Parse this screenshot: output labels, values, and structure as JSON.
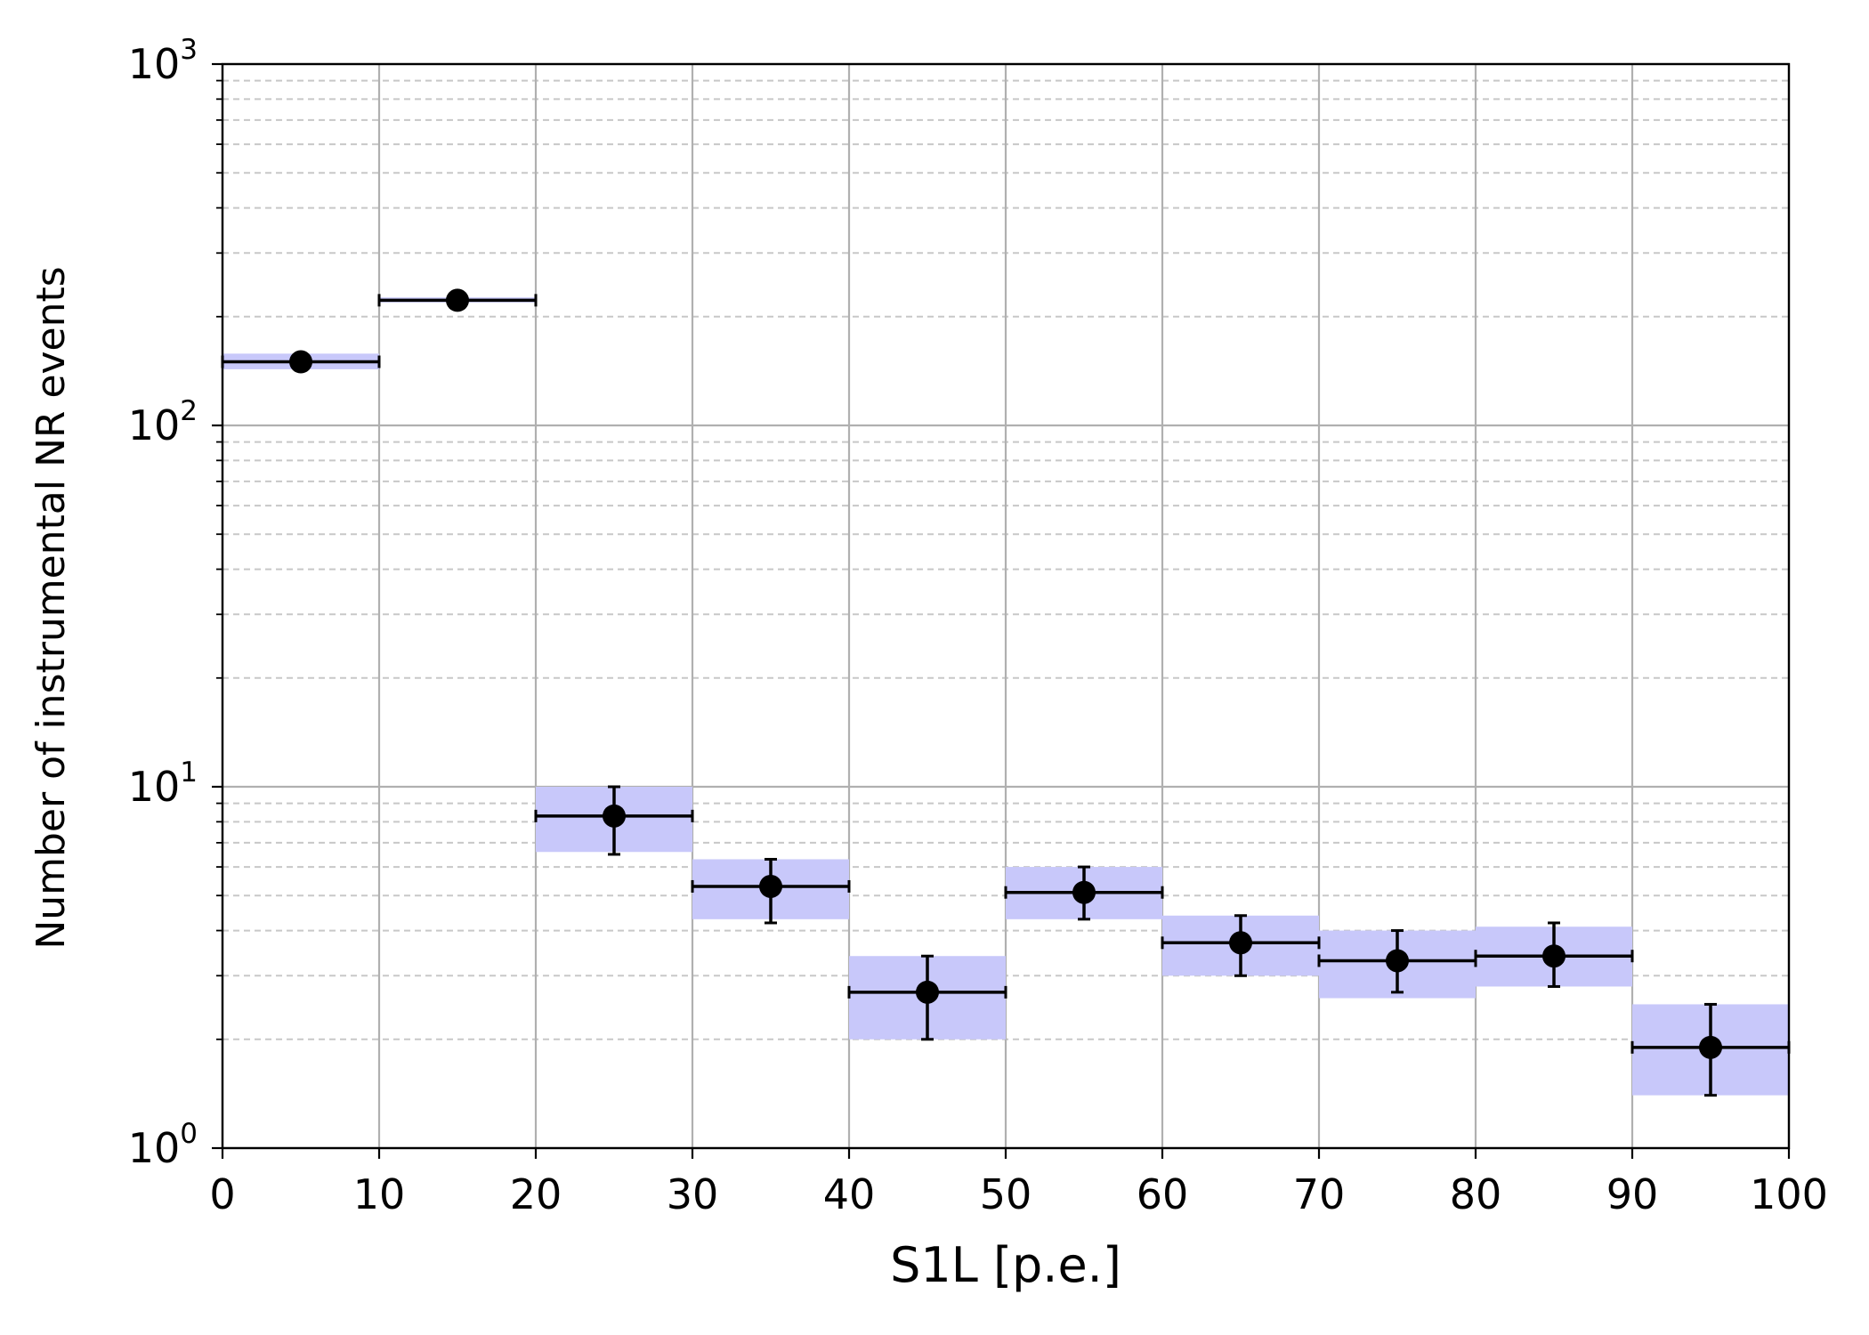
{
  "chart_data": {
    "type": "scatter",
    "title": "",
    "xlabel": "S1L [p.e.]",
    "ylabel": "Number of instrumental NR events",
    "xlim": [
      0,
      100
    ],
    "ylim": [
      1,
      1000
    ],
    "yscale": "log",
    "grid": true,
    "x_ticks": [
      "0",
      "10",
      "20",
      "30",
      "40",
      "50",
      "60",
      "70",
      "80",
      "90",
      "100"
    ],
    "y_ticks": [
      {
        "base": "10",
        "exp": "0",
        "value": 1
      },
      {
        "base": "10",
        "exp": "1",
        "value": 10
      },
      {
        "base": "10",
        "exp": "2",
        "value": 100
      },
      {
        "base": "10",
        "exp": "3",
        "value": 1000
      }
    ],
    "band_color": "#c8c8fa",
    "marker_color": "#000000",
    "series": [
      {
        "points": [
          {
            "x": 5,
            "x_lo": 0,
            "x_hi": 10,
            "y": 150,
            "y_lo": 150,
            "y_hi": 150,
            "band_lo": 143,
            "band_hi": 158
          },
          {
            "x": 15,
            "x_lo": 10,
            "x_hi": 20,
            "y": 222,
            "y_lo": 222,
            "y_hi": 222,
            "band_lo": 219,
            "band_hi": 226
          },
          {
            "x": 25,
            "x_lo": 20,
            "x_hi": 30,
            "y": 8.3,
            "y_lo": 6.5,
            "y_hi": 10.0,
            "band_lo": 6.6,
            "band_hi": 10.0
          },
          {
            "x": 35,
            "x_lo": 30,
            "x_hi": 40,
            "y": 5.3,
            "y_lo": 4.2,
            "y_hi": 6.3,
            "band_lo": 4.3,
            "band_hi": 6.3
          },
          {
            "x": 45,
            "x_lo": 40,
            "x_hi": 50,
            "y": 2.7,
            "y_lo": 2.0,
            "y_hi": 3.4,
            "band_lo": 2.0,
            "band_hi": 3.4
          },
          {
            "x": 55,
            "x_lo": 50,
            "x_hi": 60,
            "y": 5.1,
            "y_lo": 4.3,
            "y_hi": 6.0,
            "band_lo": 4.3,
            "band_hi": 6.0
          },
          {
            "x": 65,
            "x_lo": 60,
            "x_hi": 70,
            "y": 3.7,
            "y_lo": 3.0,
            "y_hi": 4.4,
            "band_lo": 3.0,
            "band_hi": 4.4
          },
          {
            "x": 75,
            "x_lo": 70,
            "x_hi": 80,
            "y": 3.3,
            "y_lo": 2.7,
            "y_hi": 4.0,
            "band_lo": 2.6,
            "band_hi": 4.0
          },
          {
            "x": 85,
            "x_lo": 80,
            "x_hi": 90,
            "y": 3.4,
            "y_lo": 2.8,
            "y_hi": 4.2,
            "band_lo": 2.8,
            "band_hi": 4.1
          },
          {
            "x": 95,
            "x_lo": 90,
            "x_hi": 100,
            "y": 1.9,
            "y_lo": 1.4,
            "y_hi": 2.5,
            "band_lo": 1.4,
            "band_hi": 2.5
          }
        ]
      }
    ]
  }
}
